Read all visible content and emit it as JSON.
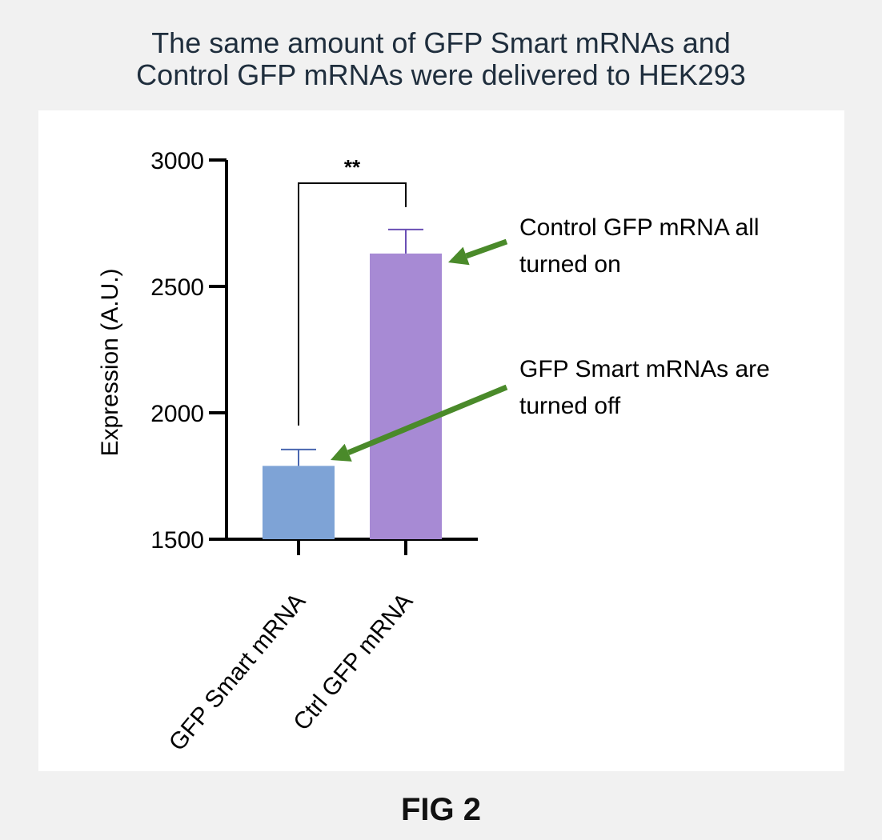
{
  "header": {
    "title_line1": "The same amount of GFP Smart mRNAs and",
    "title_line2": "Control GFP mRNAs were delivered to HEK293"
  },
  "figure_label": "FIG 2",
  "chart_data": {
    "type": "bar",
    "title": "The same amount of GFP Smart mRNAs and Control GFP mRNAs were delivered to HEK293",
    "xlabel": "",
    "ylabel": "Expression (A.U.)",
    "ylim": [
      1500,
      3000
    ],
    "yticks": [
      1500,
      2000,
      2500,
      3000
    ],
    "ytick_labels": [
      "1500",
      "2000",
      "2500",
      "3000"
    ],
    "grid": false,
    "categories": [
      "GFP Smart mRNA",
      "Ctrl GFP mRNA"
    ],
    "values": [
      1790,
      2630
    ],
    "error_upper": [
      1855,
      2725
    ],
    "colors": [
      "#7ea3d6",
      "#a78ad4"
    ],
    "errorbar_colors": [
      "#4a67b0",
      "#6a4fb5"
    ],
    "significance": {
      "label": "**",
      "between": [
        0,
        1
      ]
    },
    "annotations": [
      {
        "text_lines": [
          "Control GFP mRNA all",
          "turned on"
        ],
        "target_bar": 1,
        "arrow_color": "#4a8a2a"
      },
      {
        "text_lines": [
          "GFP Smart mRNAs are",
          "turned off"
        ],
        "target_bar": 0,
        "arrow_color": "#4a8a2a"
      }
    ]
  }
}
